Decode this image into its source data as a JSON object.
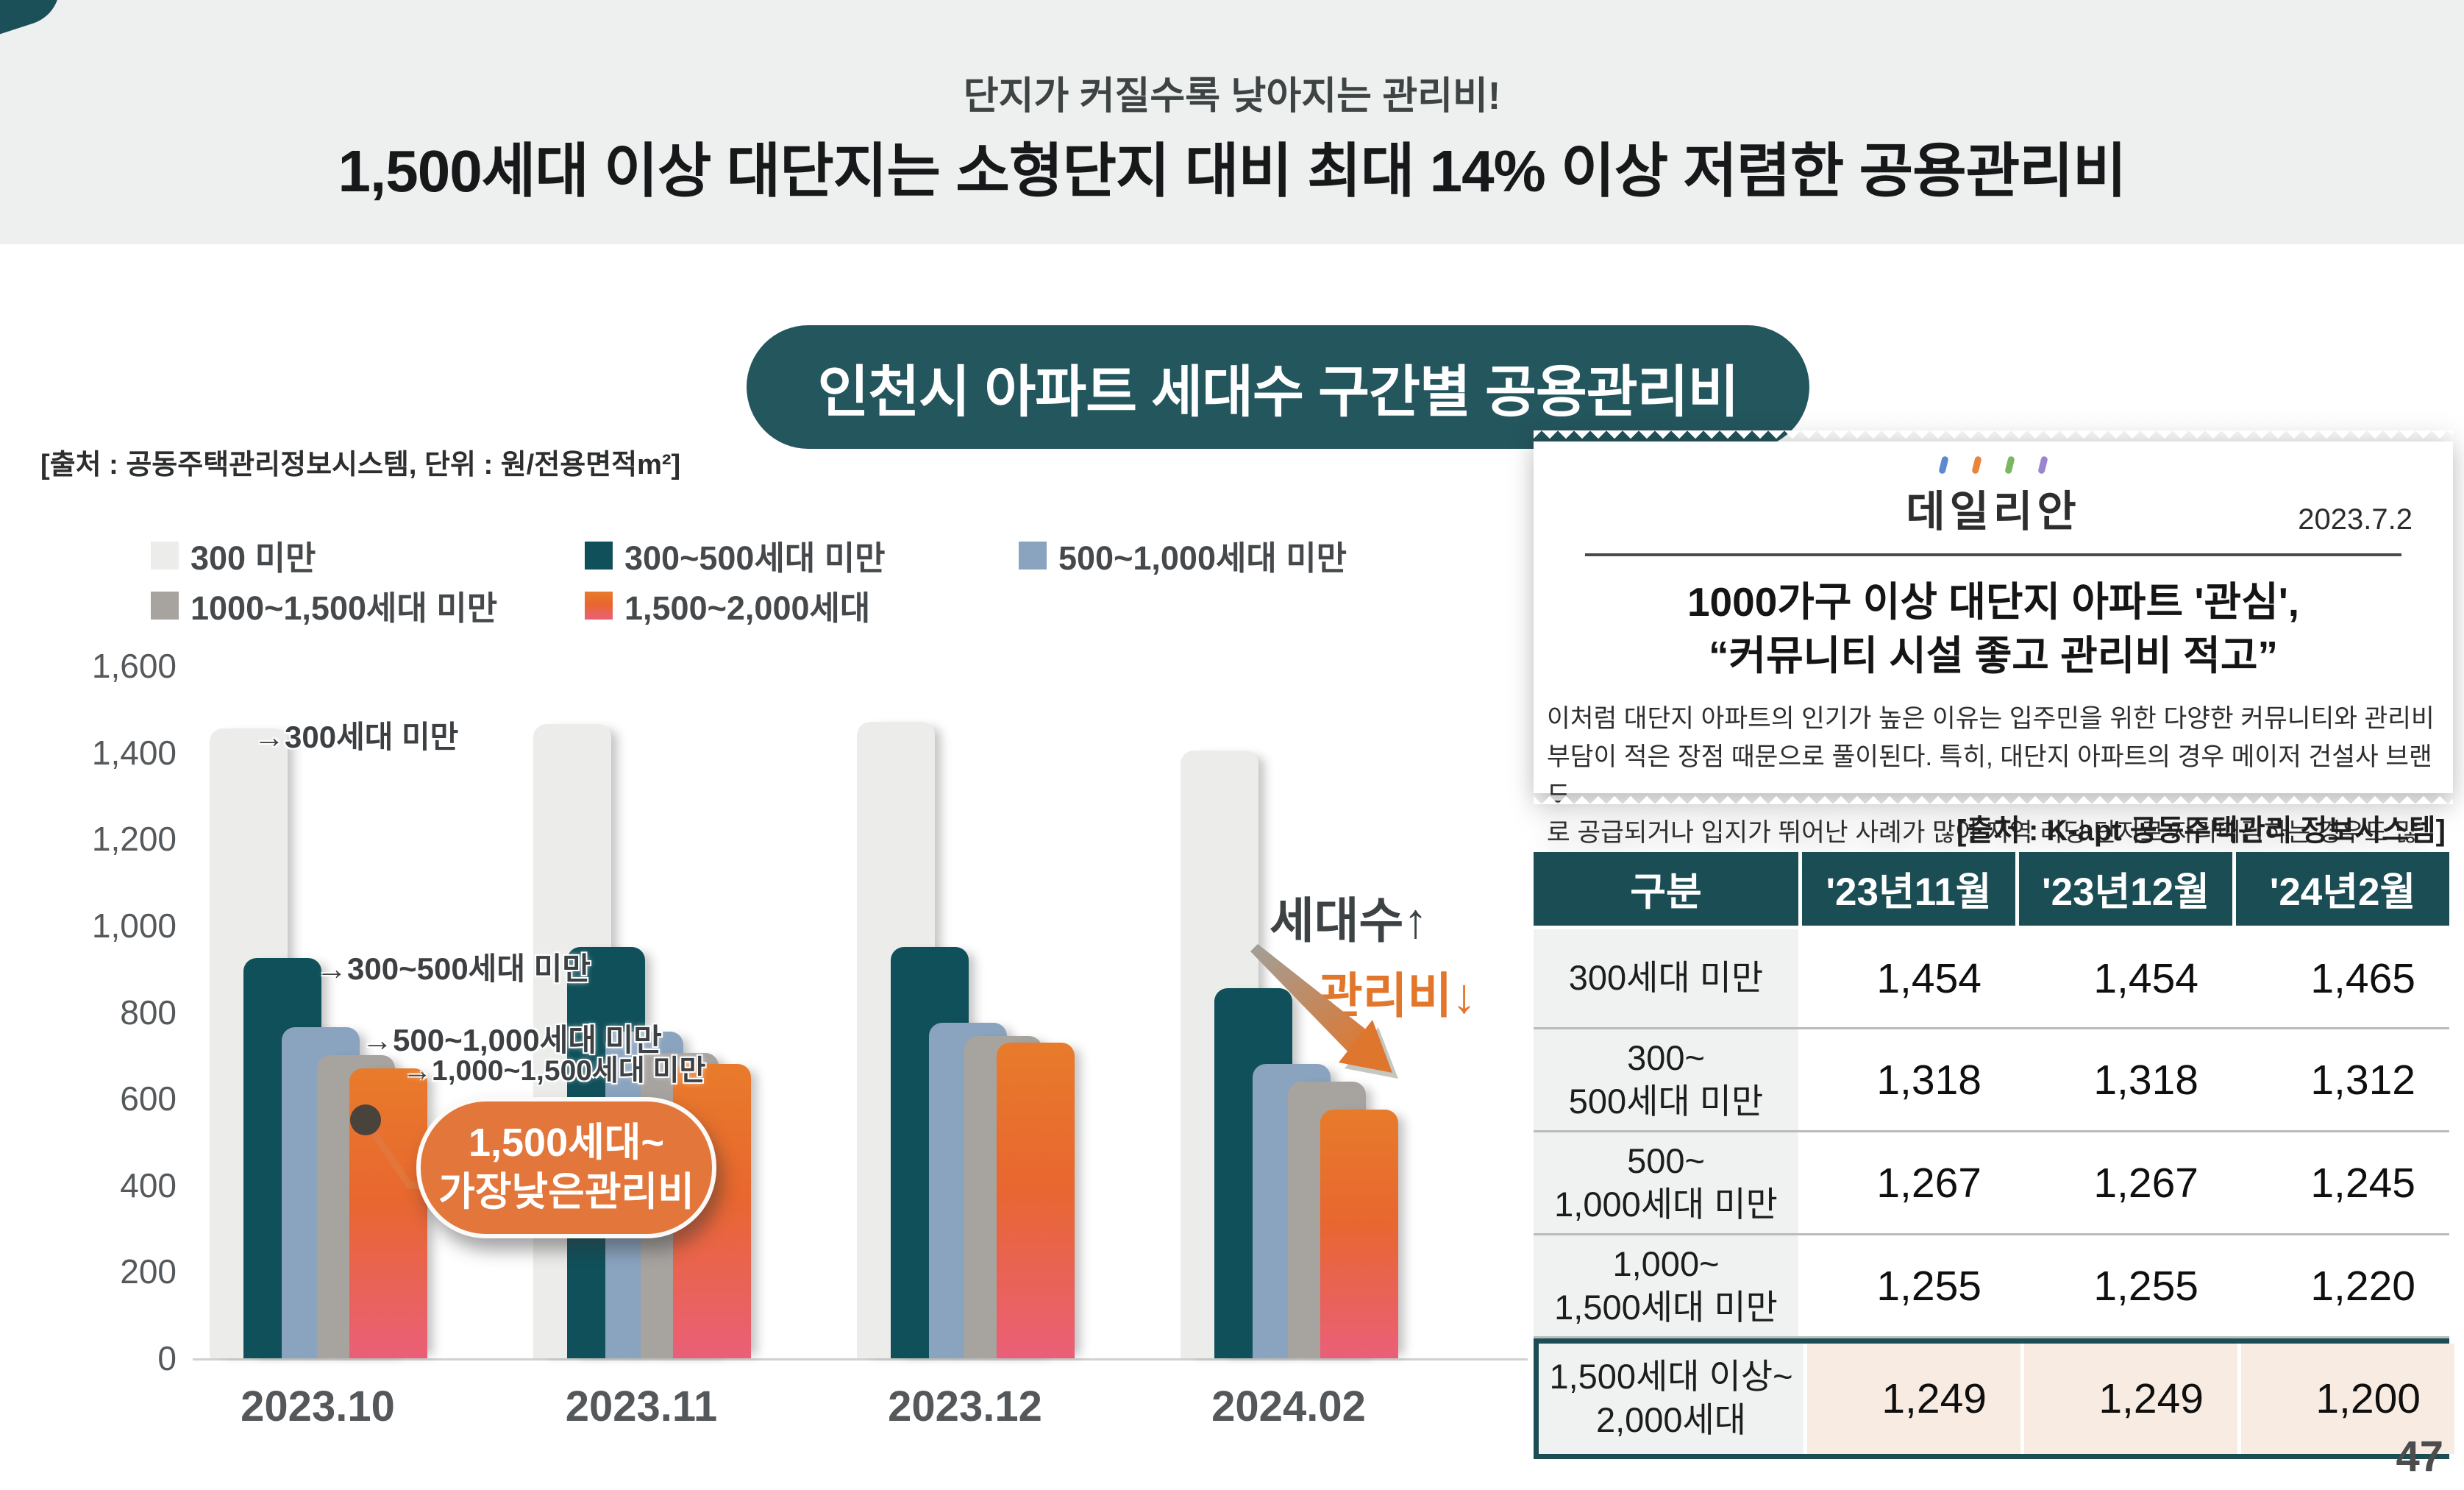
{
  "header": {
    "subtitle": "단지가 커질수록 낮아지는 관리비!",
    "title": "1,500세대 이상 대단지는 소형단지 대비 최대 14% 이상 저렴한 공용관리비"
  },
  "chart_section": {
    "badge_title": "인천시 아파트 세대수 구간별 공용관리비",
    "source_note": "[출처 : 공동주택관리정보시스템, 단위 : 원/전용면적m²]",
    "annotations": {
      "bar_label_300": "→300세대 미만",
      "bar_label_300_500": "→300~500세대 미만",
      "bar_label_500_1000": "→500~1,000세대 미만",
      "bar_label_1000_1500": "→1,000~1,500세대 미만",
      "callout_line1": "1,500세대~",
      "callout_line2": "가장낮은관리비",
      "households_up": "세대수↑",
      "fee_down": "관리비↓"
    }
  },
  "chart_data": {
    "type": "bar",
    "title": "인천시 아파트 세대수 구간별 공용관리비",
    "unit": "원/전용면적m²",
    "categories": [
      "2023.10",
      "2023.11",
      "2023.12",
      "2024.02"
    ],
    "series": [
      {
        "name": "300 미만",
        "color": "#ecedeb",
        "values": [
          1455,
          1465,
          1470,
          1405
        ]
      },
      {
        "name": "300~500세대 미만",
        "color": "#10505a",
        "values": [
          925,
          950,
          950,
          855
        ]
      },
      {
        "name": "500~1,000세대 미만",
        "color": "#8aa3bf",
        "values": [
          765,
          755,
          775,
          680
        ]
      },
      {
        "name": "1000~1,500세대 미만",
        "color": "#a7a39f",
        "values": [
          700,
          705,
          745,
          640
        ]
      },
      {
        "name": "1,500~2,000세대",
        "color_top": "#e87b2b",
        "color_mid": "#e8672f",
        "color_bottom": "#ea5f78",
        "values": [
          670,
          680,
          730,
          575
        ]
      }
    ],
    "ylim": [
      0,
      1600
    ],
    "yticks": [
      "1,600",
      "1,400",
      "1,200",
      "1,000",
      "800",
      "600",
      "400",
      "200",
      "0"
    ],
    "legend_position": "top",
    "grid": false
  },
  "news": {
    "logo": "데일리안",
    "date": "2023.7.2",
    "headline_line1": "1000가구 이상 대단지 아파트 '관심',",
    "headline_line2": "“커뮤니티 시설 좋고 관리비 적고”",
    "body_line1": "이처럼 대단지 아파트의 인기가 높은 이유는 입주민을 위한 다양한 커뮤니티와 관리비",
    "body_line2": "부담이 적은 장점 때문으로 풀이된다. 특히, 대단지 아파트의 경우 메이저 건설사 브랜드",
    "body_line3": "로 공급되거나 입지가 뛰어난 사례가 많아 지역 리딩 단지로 자리매김하는 경우도 많다."
  },
  "table": {
    "source_note": "[출처 : K-apt 공동주택관리 정보시스템]",
    "headers": [
      "구분",
      "'23년11월",
      "'23년12월",
      "'24년2월"
    ],
    "rows": [
      {
        "label_line1": "300세대 미만",
        "label_line2": "",
        "values": [
          "1,454",
          "1,454",
          "1,465"
        ],
        "highlight": false
      },
      {
        "label_line1": "300~",
        "label_line2": "500세대 미만",
        "values": [
          "1,318",
          "1,318",
          "1,312"
        ],
        "highlight": false
      },
      {
        "label_line1": "500~",
        "label_line2": "1,000세대 미만",
        "values": [
          "1,267",
          "1,267",
          "1,245"
        ],
        "highlight": false
      },
      {
        "label_line1": "1,000~",
        "label_line2": "1,500세대 미만",
        "values": [
          "1,255",
          "1,255",
          "1,220"
        ],
        "highlight": false
      },
      {
        "label_line1": "1,500세대 이상~",
        "label_line2": "2,000세대",
        "values": [
          "1,249",
          "1,249",
          "1,200"
        ],
        "highlight": true
      }
    ]
  },
  "page": {
    "page_number": "47"
  },
  "colors": {
    "teal": "#1b4d55",
    "orange": "#e2763b",
    "highlight_row_bg": "#f8ebe1",
    "band_bg": "#eef0ef"
  }
}
